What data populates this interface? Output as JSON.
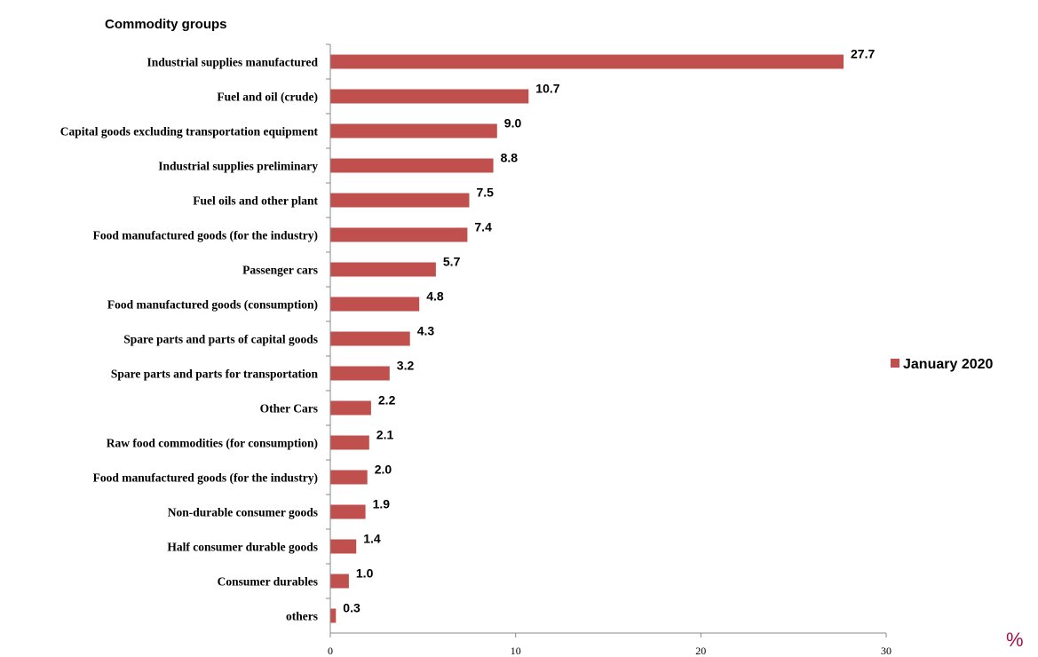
{
  "chart_data": {
    "type": "bar",
    "orientation": "horizontal",
    "title": "Commodity groups",
    "unit": "%",
    "categories": [
      "Industrial supplies manufactured",
      "Fuel and oil (crude)",
      "Capital goods excluding transportation equipment",
      "Industrial supplies preliminary",
      "Fuel oils and other plant",
      "Food manufactured goods (for the industry)",
      "Passenger cars",
      "Food manufactured goods (consumption)",
      "Spare parts and parts of capital goods",
      "Spare parts and parts for transportation",
      "Other Cars",
      "Raw food commodities (for consumption)",
      "Food manufactured goods (for the industry)",
      "Non-durable consumer goods",
      "Half consumer durable goods",
      "Consumer durables",
      "others"
    ],
    "series": [
      {
        "name": "January 2020",
        "color": "#c0504d",
        "values": [
          27.7,
          10.7,
          9.0,
          8.8,
          7.5,
          7.4,
          5.7,
          4.8,
          4.3,
          3.2,
          2.2,
          2.1,
          2.0,
          1.9,
          1.4,
          1.0,
          0.3
        ],
        "labels": [
          "27.7",
          "10.7",
          "9.0",
          "8.8",
          "7.5",
          "7.4",
          "5.7",
          "4.8",
          "4.3",
          "3.2",
          "2.2",
          "2.1",
          "2.0",
          "1.9",
          "1.4",
          "1.0",
          "0.3"
        ]
      }
    ],
    "xlim": [
      0,
      30
    ],
    "xticks": [
      "0",
      "10",
      "20",
      "30"
    ],
    "grid": false,
    "legend_position": "right"
  }
}
